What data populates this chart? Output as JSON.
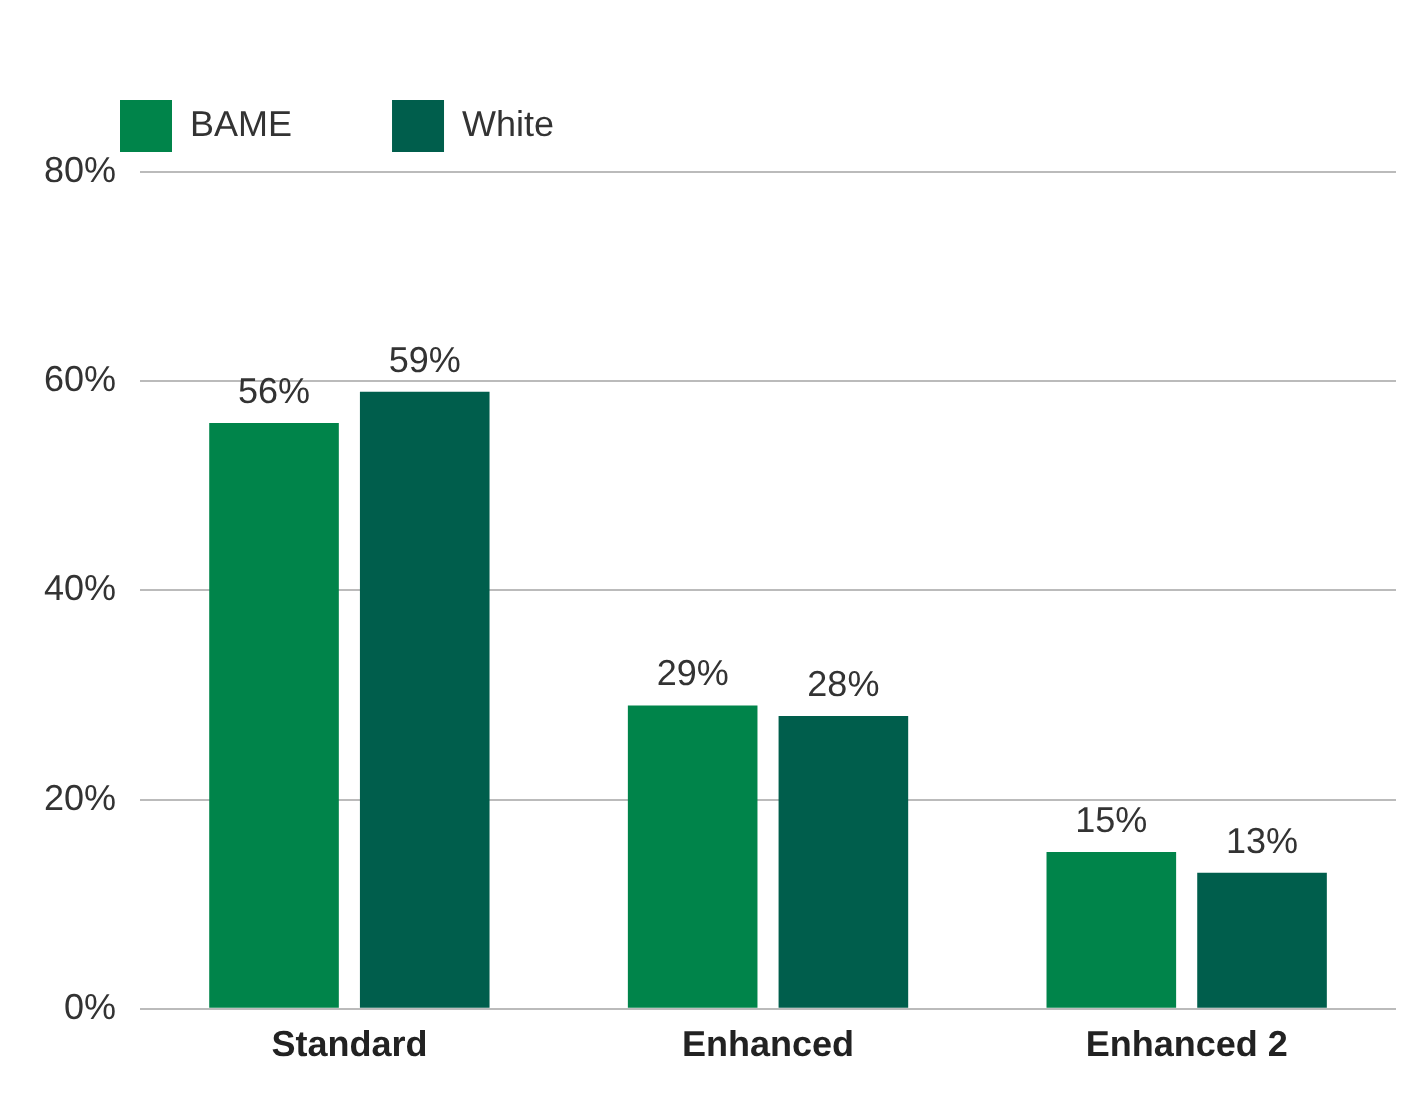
{
  "chart_data": {
    "type": "bar",
    "categories": [
      "Standard",
      "Enhanced",
      "Enhanced 2"
    ],
    "series": [
      {
        "name": "BAME",
        "color": "#00844a",
        "values": [
          56,
          29,
          15
        ],
        "value_labels": [
          "56%",
          "29%",
          "15%"
        ]
      },
      {
        "name": "White",
        "color": "#005e4c",
        "values": [
          59,
          28,
          13
        ],
        "value_labels": [
          "59%",
          "28%",
          "13%"
        ]
      }
    ],
    "ylim": [
      0,
      80
    ],
    "yticks": [
      {
        "value": 0,
        "label": "0%"
      },
      {
        "value": 20,
        "label": "20%"
      },
      {
        "value": 40,
        "label": "40%"
      },
      {
        "value": 60,
        "label": "60%"
      },
      {
        "value": 80,
        "label": "80%"
      }
    ],
    "grid": "y",
    "legend": "top left"
  }
}
